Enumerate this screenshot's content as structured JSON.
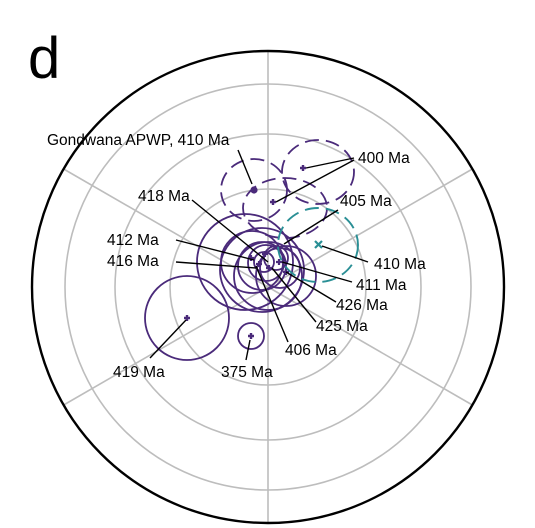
{
  "panel_label": "d",
  "annotations": {
    "gondwana": "Gondwana APWP, 410 Ma",
    "a400": "400 Ma",
    "a405": "405 Ma",
    "a418": "418 Ma",
    "a412": "412 Ma",
    "a416": "416 Ma",
    "a410": "410 Ma",
    "a411": "411 Ma",
    "a426": "426 Ma",
    "a425": "425 Ma",
    "a406": "406 Ma",
    "a419": "419 Ma",
    "a375": "375 Ma"
  },
  "colors": {
    "purple": "#4a2a7a",
    "teal": "#2a8f95",
    "grid": "#bdbdbd",
    "frame": "#000000"
  }
}
